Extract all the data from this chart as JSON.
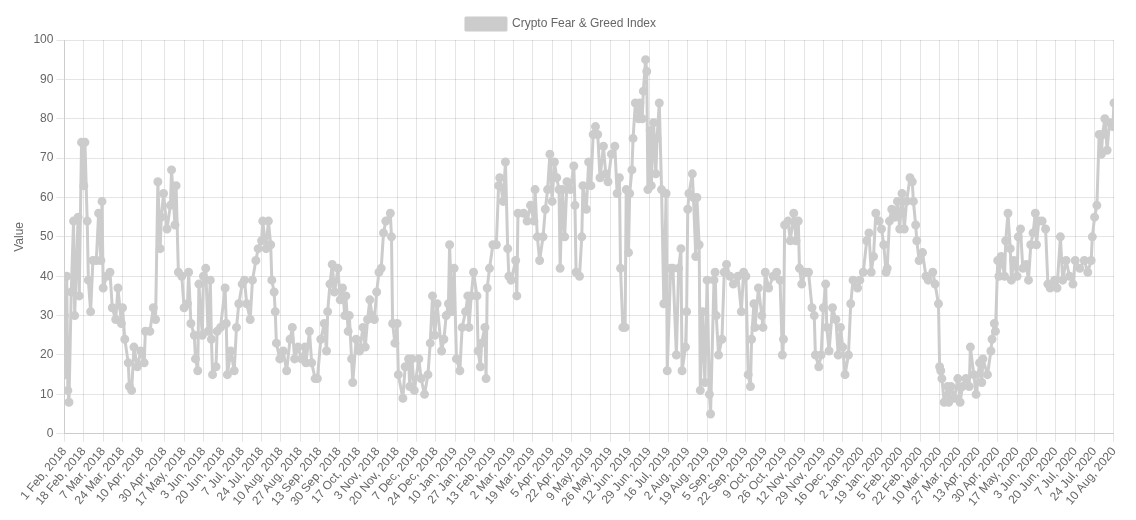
{
  "chart_data": {
    "type": "line",
    "ylabel": "Value",
    "legend": "top",
    "grid": true,
    "marker": "circle",
    "xlim": [
      "2018-02-01",
      "2020-08-10"
    ],
    "ylim": [
      0,
      100
    ],
    "yticks": [
      0,
      10,
      20,
      30,
      40,
      50,
      60,
      70,
      80,
      90,
      100
    ],
    "xticks": [
      {
        "value": "2018-02-01",
        "label": "1 Feb, 2018"
      },
      {
        "value": "2018-02-18",
        "label": "18 Feb, 2018"
      },
      {
        "value": "2018-03-07",
        "label": "7 Mar, 2018"
      },
      {
        "value": "2018-03-24",
        "label": "24 Mar, 2018"
      },
      {
        "value": "2018-04-10",
        "label": "10 Apr, 2018"
      },
      {
        "value": "2018-04-30",
        "label": "30 Apr, 2018"
      },
      {
        "value": "2018-05-17",
        "label": "17 May, 2018"
      },
      {
        "value": "2018-06-03",
        "label": "3 Jun, 2018"
      },
      {
        "value": "2018-06-20",
        "label": "20 Jun, 2018"
      },
      {
        "value": "2018-07-07",
        "label": "7 Jul, 2018"
      },
      {
        "value": "2018-07-24",
        "label": "24 Jul, 2018"
      },
      {
        "value": "2018-08-10",
        "label": "10 Aug, 2018"
      },
      {
        "value": "2018-08-27",
        "label": "27 Aug, 2018"
      },
      {
        "value": "2018-09-13",
        "label": "13 Sep, 2018"
      },
      {
        "value": "2018-09-30",
        "label": "30 Sep, 2018"
      },
      {
        "value": "2018-10-17",
        "label": "17 Oct, 2018"
      },
      {
        "value": "2018-11-03",
        "label": "3 Nov, 2018"
      },
      {
        "value": "2018-11-20",
        "label": "20 Nov, 2018"
      },
      {
        "value": "2018-12-07",
        "label": "7 Dec, 2018"
      },
      {
        "value": "2018-12-24",
        "label": "24 Dec, 2018"
      },
      {
        "value": "2019-01-10",
        "label": "10 Jan, 2019"
      },
      {
        "value": "2019-01-27",
        "label": "27 Jan, 2019"
      },
      {
        "value": "2019-02-13",
        "label": "13 Feb, 2019"
      },
      {
        "value": "2019-03-02",
        "label": "2 Mar, 2019"
      },
      {
        "value": "2019-03-19",
        "label": "19 Mar, 2019"
      },
      {
        "value": "2019-04-05",
        "label": "5 Apr, 2019"
      },
      {
        "value": "2019-04-22",
        "label": "22 Apr, 2019"
      },
      {
        "value": "2019-05-09",
        "label": "9 May, 2019"
      },
      {
        "value": "2019-05-26",
        "label": "26 May, 2019"
      },
      {
        "value": "2019-06-12",
        "label": "12 Jun, 2019"
      },
      {
        "value": "2019-06-29",
        "label": "29 Jun, 2019"
      },
      {
        "value": "2019-07-16",
        "label": "16 Jul, 2019"
      },
      {
        "value": "2019-08-02",
        "label": "2 Aug, 2019"
      },
      {
        "value": "2019-08-19",
        "label": "19 Aug, 2019"
      },
      {
        "value": "2019-09-05",
        "label": "5 Sep, 2019"
      },
      {
        "value": "2019-09-22",
        "label": "22 Sep, 2019"
      },
      {
        "value": "2019-10-09",
        "label": "9 Oct, 2019"
      },
      {
        "value": "2019-10-26",
        "label": "26 Oct, 2019"
      },
      {
        "value": "2019-11-12",
        "label": "12 Nov, 2019"
      },
      {
        "value": "2019-11-29",
        "label": "29 Nov, 2019"
      },
      {
        "value": "2019-12-16",
        "label": "16 Dec, 2019"
      },
      {
        "value": "2020-01-02",
        "label": "2 Jan, 2020"
      },
      {
        "value": "2020-01-19",
        "label": "19 Jan, 2020"
      },
      {
        "value": "2020-02-05",
        "label": "5 Feb, 2020"
      },
      {
        "value": "2020-02-22",
        "label": "22 Feb, 2020"
      },
      {
        "value": "2020-03-10",
        "label": "10 Mar, 2020"
      },
      {
        "value": "2020-03-27",
        "label": "27 Mar, 2020"
      },
      {
        "value": "2020-04-13",
        "label": "13 Apr, 2020"
      },
      {
        "value": "2020-04-30",
        "label": "30 Apr, 2020"
      },
      {
        "value": "2020-05-17",
        "label": "17 May, 2020"
      },
      {
        "value": "2020-06-03",
        "label": "3 Jun, 2020"
      },
      {
        "value": "2020-06-20",
        "label": "20 Jun, 2020"
      },
      {
        "value": "2020-07-07",
        "label": "7 Jul, 2020"
      },
      {
        "value": "2020-07-24",
        "label": "24 Jul, 2020"
      },
      {
        "value": "2020-08-10",
        "label": "10 Aug, 2020"
      }
    ],
    "series": [
      {
        "name": "Crypto Fear & Greed Index",
        "color": "#cccccc",
        "x": [
          "2018-02-01",
          "2018-02-02",
          "2018-02-03",
          "2018-02-04",
          "2018-02-05",
          "2018-02-07",
          "2018-02-09",
          "2018-02-10",
          "2018-02-13",
          "2018-02-14",
          "2018-02-16",
          "2018-02-18",
          "2018-02-19",
          "2018-02-21",
          "2018-02-22",
          "2018-02-24",
          "2018-02-26",
          "2018-03-01",
          "2018-03-03",
          "2018-03-05",
          "2018-03-06",
          "2018-03-07",
          "2018-03-10",
          "2018-03-13",
          "2018-03-15",
          "2018-03-18",
          "2018-03-20",
          "2018-03-23",
          "2018-03-24",
          "2018-03-26",
          "2018-03-29",
          "2018-03-30",
          "2018-04-01",
          "2018-04-03",
          "2018-04-06",
          "2018-04-09",
          "2018-04-12",
          "2018-04-13",
          "2018-04-17",
          "2018-04-20",
          "2018-04-22",
          "2018-04-24",
          "2018-04-26",
          "2018-04-27",
          "2018-04-29",
          "2018-05-02",
          "2018-05-05",
          "2018-05-06",
          "2018-05-09",
          "2018-05-10",
          "2018-05-12",
          "2018-05-15",
          "2018-05-17",
          "2018-05-20",
          "2018-05-21",
          "2018-05-23",
          "2018-05-26",
          "2018-05-27",
          "2018-05-29",
          "2018-05-30",
          "2018-06-02",
          "2018-06-03",
          "2018-06-05",
          "2018-06-07",
          "2018-06-09",
          "2018-06-10",
          "2018-06-11",
          "2018-06-14",
          "2018-06-15",
          "2018-06-18",
          "2018-06-22",
          "2018-06-23",
          "2018-06-24",
          "2018-06-27",
          "2018-06-30",
          "2018-07-02",
          "2018-07-04",
          "2018-07-07",
          "2018-07-09",
          "2018-07-11",
          "2018-07-14",
          "2018-07-16",
          "2018-07-19",
          "2018-07-21",
          "2018-07-24",
          "2018-07-25",
          "2018-07-28",
          "2018-07-30",
          "2018-08-01",
          "2018-08-02",
          "2018-08-04",
          "2018-08-05",
          "2018-08-06",
          "2018-08-09",
          "2018-08-12",
          "2018-08-15",
          "2018-08-18",
          "2018-08-20",
          "2018-08-22",
          "2018-08-25",
          "2018-08-28",
          "2018-08-31",
          "2018-09-01",
          "2018-09-04",
          "2018-09-06",
          "2018-09-09",
          "2018-09-11",
          "2018-09-14",
          "2018-09-17",
          "2018-09-19",
          "2018-09-20",
          "2018-09-22",
          "2018-09-24",
          "2018-09-26",
          "2018-09-29",
          "2018-10-01",
          "2018-10-03",
          "2018-10-05",
          "2018-10-06",
          "2018-10-08",
          "2018-10-09",
          "2018-10-11",
          "2018-10-12",
          "2018-10-15",
          "2018-10-18",
          "2018-10-21",
          "2018-10-23",
          "2018-10-25",
          "2018-10-27",
          "2018-10-29",
          "2018-10-31",
          "2018-11-02",
          "2018-11-04",
          "2018-11-06",
          "2018-11-08",
          "2018-11-10",
          "2018-11-14",
          "2018-11-15",
          "2018-11-16",
          "2018-11-18",
          "2018-11-20",
          "2018-11-21",
          "2018-11-25",
          "2018-11-27",
          "2018-11-30",
          "2018-12-01",
          "2018-12-03",
          "2018-12-05",
          "2018-12-09",
          "2018-12-11",
          "2018-12-14",
          "2018-12-17",
          "2018-12-19",
          "2018-12-21",
          "2018-12-23",
          "2018-12-25",
          "2018-12-29",
          "2018-12-31",
          "2019-01-02",
          "2019-01-04",
          "2019-01-05",
          "2019-01-07",
          "2019-01-09",
          "2019-01-11",
          "2019-01-14",
          "2019-01-16",
          "2019-01-19",
          "2019-01-21",
          "2019-01-22",
          "2019-01-24",
          "2019-01-26",
          "2019-01-29",
          "2019-01-30",
          "2019-02-01",
          "2019-02-02",
          "2019-02-05",
          "2019-02-06",
          "2019-02-07",
          "2019-02-09",
          "2019-02-12",
          "2019-02-15",
          "2019-02-17",
          "2019-02-18",
          "2019-02-21",
          "2019-02-23",
          "2019-02-25",
          "2019-02-26",
          "2019-02-28",
          "2019-03-04",
          "2019-03-05",
          "2019-03-06",
          "2019-03-11",
          "2019-03-14",
          "2019-03-17",
          "2019-03-20",
          "2019-03-21",
          "2019-03-23",
          "2019-03-25",
          "2019-03-28",
          "2019-03-30",
          "2019-04-01",
          "2019-04-03",
          "2019-04-05",
          "2019-04-07",
          "2019-04-09",
          "2019-04-11",
          "2019-04-12",
          "2019-04-14",
          "2019-04-16",
          "2019-04-18",
          "2019-04-21",
          "2019-04-24",
          "2019-04-25",
          "2019-04-26",
          "2019-04-29",
          "2019-05-01",
          "2019-05-02",
          "2019-05-05",
          "2019-05-07",
          "2019-05-09",
          "2019-05-11",
          "2019-05-13",
          "2019-05-15",
          "2019-05-17",
          "2019-05-20",
          "2019-05-22",
          "2019-05-24",
          "2019-05-27",
          "2019-05-30",
          "2019-06-01",
          "2019-06-03",
          "2019-06-04",
          "2019-06-06",
          "2019-06-08",
          "2019-06-09",
          "2019-06-11",
          "2019-06-12",
          "2019-06-14",
          "2019-06-15",
          "2019-06-17",
          "2019-06-20",
          "2019-06-21",
          "2019-06-23",
          "2019-06-24",
          "2019-06-26",
          "2019-06-27",
          "2019-06-28",
          "2019-06-30",
          "2019-07-01",
          "2019-07-03",
          "2019-07-05",
          "2019-07-06",
          "2019-07-08",
          "2019-07-10",
          "2019-07-12",
          "2019-07-14",
          "2019-07-15",
          "2019-07-18",
          "2019-07-20",
          "2019-07-23",
          "2019-07-25",
          "2019-07-27",
          "2019-07-28",
          "2019-07-31",
          "2019-08-01",
          "2019-08-02",
          "2019-08-03",
          "2019-08-06",
          "2019-08-07",
          "2019-08-09",
          "2019-08-10",
          "2019-08-12",
          "2019-08-13",
          "2019-08-15",
          "2019-08-17",
          "2019-08-19",
          "2019-08-21",
          "2019-08-22",
          "2019-08-25",
          "2019-08-26",
          "2019-08-27",
          "2019-08-29",
          "2019-09-01",
          "2019-09-03",
          "2019-09-05",
          "2019-09-08",
          "2019-09-11",
          "2019-09-15",
          "2019-09-18",
          "2019-09-20",
          "2019-09-22",
          "2019-09-24",
          "2019-09-26",
          "2019-09-27",
          "2019-09-29",
          "2019-09-30",
          "2019-10-03",
          "2019-10-06",
          "2019-10-07",
          "2019-10-09",
          "2019-10-12",
          "2019-10-16",
          "2019-10-19",
          "2019-10-22",
          "2019-10-24",
          "2019-10-25",
          "2019-10-26",
          "2019-10-29",
          "2019-10-31",
          "2019-11-03",
          "2019-11-05",
          "2019-11-07",
          "2019-11-08",
          "2019-11-10",
          "2019-11-13",
          "2019-11-16",
          "2019-11-19",
          "2019-11-21",
          "2019-11-22",
          "2019-11-25",
          "2019-11-27",
          "2019-11-29",
          "2019-12-01",
          "2019-12-02",
          "2019-12-04",
          "2019-12-07",
          "2019-12-10",
          "2019-12-12",
          "2019-12-14",
          "2019-12-16",
          "2019-12-18",
          "2019-12-21",
          "2019-12-23",
          "2019-12-25",
          "2019-12-29",
          "2019-12-31",
          "2020-01-03",
          "2020-01-06",
          "2020-01-08",
          "2020-01-10",
          "2020-01-12",
          "2020-01-14",
          "2020-01-17",
          "2020-01-19",
          "2020-01-21",
          "2020-01-23",
          "2020-01-24",
          "2020-01-26",
          "2020-01-28",
          "2020-01-31",
          "2020-02-02",
          "2020-02-04",
          "2020-02-06",
          "2020-02-08",
          "2020-02-10",
          "2020-02-13",
          "2020-02-15",
          "2020-02-16",
          "2020-02-18",
          "2020-02-19",
          "2020-02-21",
          "2020-02-24",
          "2020-02-27",
          "2020-02-29",
          "2020-03-04",
          "2020-03-06",
          "2020-03-09",
          "2020-03-10",
          "2020-03-11",
          "2020-03-12",
          "2020-03-14",
          "2020-03-17",
          "2020-03-18",
          "2020-03-20",
          "2020-03-23",
          "2020-03-26",
          "2020-03-28",
          "2020-03-30",
          "2020-04-02",
          "2020-04-05",
          "2020-04-06",
          "2020-04-09",
          "2020-04-11",
          "2020-04-14",
          "2020-04-16",
          "2020-04-17",
          "2020-04-21",
          "2020-04-24",
          "2020-04-25",
          "2020-04-27",
          "2020-04-28",
          "2020-04-30",
          "2020-05-01",
          "2020-05-03",
          "2020-05-06",
          "2020-05-07",
          "2020-05-09",
          "2020-05-11",
          "2020-05-12",
          "2020-05-14",
          "2020-05-17",
          "2020-05-18",
          "2020-05-20",
          "2020-05-22",
          "2020-05-25",
          "2020-05-27",
          "2020-05-29",
          "2020-05-31",
          "2020-06-02",
          "2020-06-03",
          "2020-06-05",
          "2020-06-08",
          "2020-06-11",
          "2020-06-13",
          "2020-06-15",
          "2020-06-19",
          "2020-06-21",
          "2020-06-24",
          "2020-06-26",
          "2020-06-29",
          "2020-07-02",
          "2020-07-05",
          "2020-07-07",
          "2020-07-11",
          "2020-07-15",
          "2020-07-18",
          "2020-07-21",
          "2020-07-22",
          "2020-07-24",
          "2020-07-26",
          "2020-07-28",
          "2020-07-30",
          "2020-07-31",
          "2020-08-02",
          "2020-08-04",
          "2020-08-06",
          "2020-08-09",
          "2020-08-10"
        ],
        "values": [
          30,
          15,
          40,
          11,
          8,
          36,
          54,
          30,
          55,
          35,
          74,
          63,
          74,
          54,
          39,
          31,
          44,
          44,
          56,
          44,
          59,
          37,
          40,
          41,
          32,
          29,
          37,
          28,
          32,
          24,
          18,
          12,
          11,
          22,
          17,
          21,
          18,
          26,
          26,
          32,
          29,
          64,
          47,
          55,
          61,
          52,
          58,
          67,
          53,
          63,
          41,
          40,
          32,
          33,
          41,
          28,
          25,
          19,
          16,
          38,
          25,
          40,
          42,
          26,
          39,
          24,
          15,
          17,
          26,
          27,
          37,
          28,
          15,
          21,
          16,
          27,
          33,
          38,
          39,
          33,
          29,
          39,
          44,
          47,
          49,
          54,
          47,
          54,
          48,
          39,
          36,
          31,
          23,
          19,
          21,
          16,
          24,
          27,
          19,
          22,
          19,
          22,
          18,
          26,
          18,
          14,
          14,
          24,
          28,
          21,
          31,
          38,
          43,
          36,
          42,
          34,
          37,
          30,
          35,
          26,
          30,
          19,
          13,
          24,
          21,
          27,
          22,
          29,
          34,
          30,
          29,
          36,
          41,
          42,
          51,
          54,
          56,
          50,
          28,
          23,
          28,
          15,
          9,
          17,
          19,
          12,
          19,
          11,
          19,
          14,
          10,
          15,
          23,
          35,
          25,
          33,
          21,
          24,
          30,
          33,
          48,
          31,
          42,
          19,
          16,
          27,
          31,
          35,
          27,
          35,
          41,
          35,
          21,
          17,
          23,
          27,
          14,
          37,
          42,
          48,
          48,
          63,
          65,
          59,
          69,
          47,
          40,
          39,
          44,
          35,
          56,
          56,
          54,
          58,
          54,
          62,
          50,
          44,
          50,
          57,
          62,
          71,
          59,
          69,
          65,
          62,
          42,
          62,
          50,
          64,
          62,
          68,
          58,
          41,
          40,
          50,
          63,
          57,
          69,
          63,
          76,
          78,
          76,
          65,
          73,
          66,
          64,
          71,
          73,
          61,
          65,
          42,
          27,
          27,
          62,
          46,
          61,
          67,
          75,
          84,
          80,
          84,
          80,
          87,
          95,
          92,
          62,
          77,
          63,
          79,
          66,
          75,
          84,
          62,
          33,
          61,
          16,
          42,
          42,
          20,
          42,
          47,
          16,
          22,
          31,
          57,
          61,
          66,
          60,
          45,
          60,
          48,
          11,
          31,
          13,
          39,
          10,
          5,
          39,
          41,
          30,
          20,
          24,
          41,
          43,
          40,
          38,
          40,
          31,
          41,
          40,
          15,
          12,
          24,
          33,
          27,
          37,
          30,
          27,
          41,
          37,
          40,
          41,
          39,
          20,
          24,
          53,
          54,
          49,
          56,
          49,
          54,
          42,
          38,
          41,
          41,
          32,
          30,
          20,
          17,
          20,
          32,
          38,
          27,
          21,
          32,
          29,
          20,
          27,
          22,
          15,
          20,
          33,
          39,
          37,
          39,
          41,
          49,
          51,
          41,
          45,
          56,
          54,
          52,
          48,
          41,
          42,
          54,
          57,
          55,
          59,
          52,
          61,
          52,
          59,
          65,
          64,
          59,
          53,
          49,
          44,
          46,
          40,
          39,
          41,
          38,
          33,
          17,
          16,
          14,
          8,
          12,
          8,
          12,
          9,
          14,
          8,
          12,
          14,
          12,
          22,
          15,
          10,
          18,
          13,
          19,
          15,
          21,
          24,
          28,
          26,
          44,
          40,
          45,
          40,
          49,
          56,
          47,
          39,
          44,
          40,
          50,
          52,
          42,
          43,
          39,
          48,
          51,
          56,
          48,
          54,
          54,
          52,
          38,
          37,
          39,
          37,
          50,
          39,
          44,
          40,
          38,
          44,
          42,
          44,
          41,
          44,
          50,
          55,
          58,
          76,
          71,
          76,
          80,
          72,
          79,
          78,
          84
        ]
      }
    ]
  }
}
